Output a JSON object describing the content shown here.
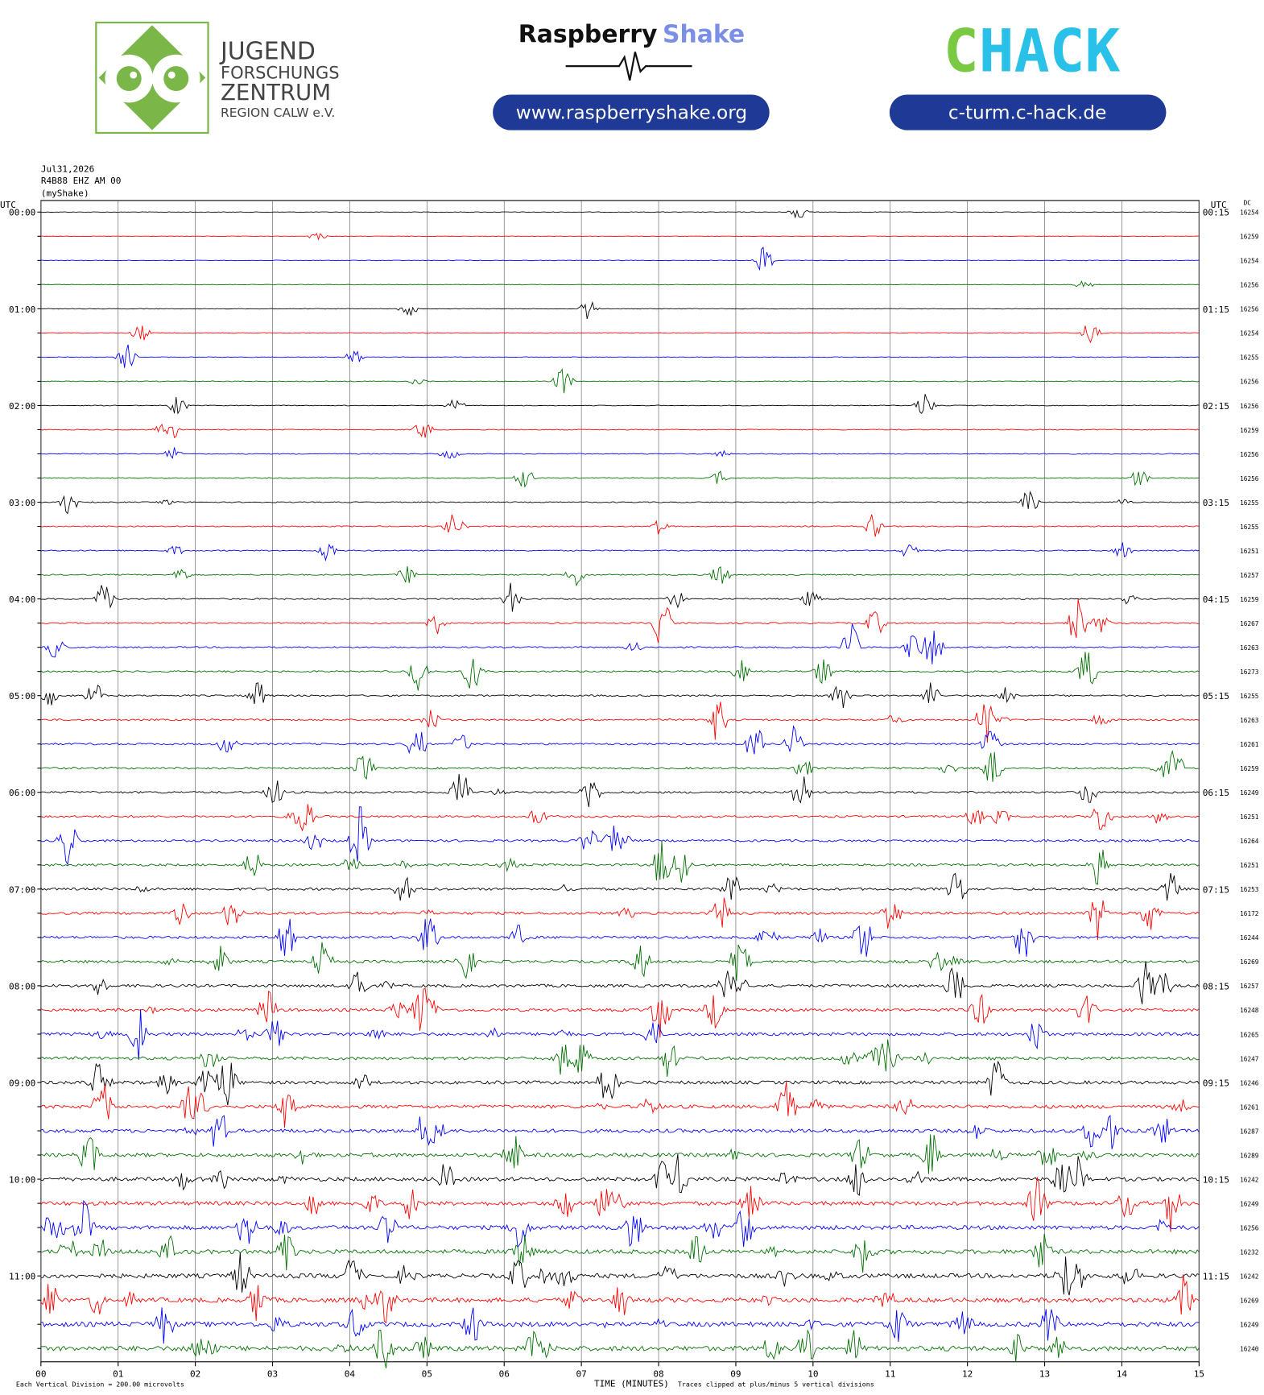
{
  "header": {
    "org_lines": [
      "JUGEND",
      "FORSCHUNGS",
      "ZENTRUM",
      "REGION CALW e.V."
    ],
    "brand_1": "Raspberry",
    "brand_2": "Shake",
    "url_1": "www.raspberryshake.org",
    "chack_1": "C",
    "chack_2": "HACK",
    "url_2": "c-turm.c-hack.de"
  },
  "chart_data": {
    "type": "helicorder",
    "date": "Jul31,2026",
    "station": "R4B88 EHZ AM 00",
    "source": "(myShake)",
    "left_unit": "UTC",
    "right_unit": "UTC",
    "dc_label": "DC",
    "left_labels": [
      "00:00",
      "01:00",
      "02:00",
      "03:00",
      "04:00",
      "05:00",
      "06:00",
      "07:00",
      "08:00",
      "09:00",
      "10:00",
      "11:00"
    ],
    "right_labels": [
      "00:15",
      "01:15",
      "02:15",
      "03:15",
      "04:15",
      "05:15",
      "06:15",
      "07:15",
      "08:15",
      "09:15",
      "10:15",
      "11:15"
    ],
    "dc": [
      16254,
      16259,
      16254,
      16256,
      16256,
      16254,
      16255,
      16256,
      16256,
      16259,
      16256,
      16256,
      16255,
      16255,
      16251,
      16257,
      16259,
      16267,
      16263,
      16273,
      16255,
      16263,
      16261,
      16259,
      16249,
      16251,
      16264,
      16251,
      16253,
      16172,
      16244,
      16269,
      16257,
      16248,
      16265,
      16247,
      16246,
      16261,
      16287,
      16289,
      16242,
      16249,
      16256,
      16232,
      16242,
      16269,
      16249,
      16240
    ],
    "colors": [
      "#000000",
      "#ff0000",
      "#0000ff",
      "#007000"
    ],
    "xlim": [
      0,
      15
    ],
    "xticks": [
      {
        "value": 0,
        "label": "00"
      },
      {
        "value": 1,
        "label": "01"
      },
      {
        "value": 2,
        "label": "02"
      },
      {
        "value": 3,
        "label": "03"
      },
      {
        "value": 4,
        "label": "04"
      },
      {
        "value": 5,
        "label": "05"
      },
      {
        "value": 6,
        "label": "06"
      },
      {
        "value": 7,
        "label": "07"
      },
      {
        "value": 8,
        "label": "08"
      },
      {
        "value": 9,
        "label": "09"
      },
      {
        "value": 10,
        "label": "10"
      },
      {
        "value": 11,
        "label": "11"
      },
      {
        "value": 12,
        "label": "12"
      },
      {
        "value": 13,
        "label": "13"
      },
      {
        "value": 14,
        "label": "14"
      },
      {
        "value": 15,
        "label": "15"
      }
    ],
    "x_label": "TIME (MINUTES)",
    "footer_left": "Each Vertical Division =  200.00 microvolts",
    "footer_right": "Traces clipped at plus/minus 5 vertical divisions"
  }
}
